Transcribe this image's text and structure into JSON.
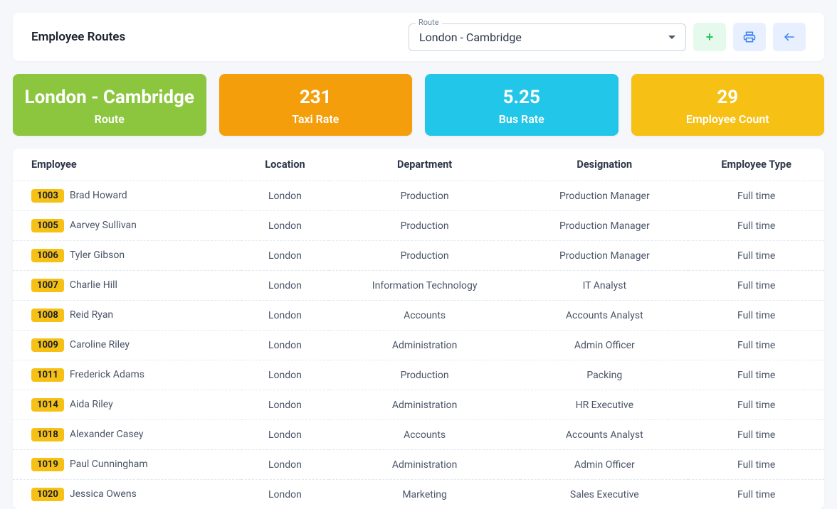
{
  "header": {
    "title": "Employee Routes",
    "route_select": {
      "label": "Route",
      "value": "London - Cambridge"
    }
  },
  "colors": {
    "route_card": "#8cc63f",
    "taxi_card": "#f59e0b",
    "bus_card": "#22c6e8",
    "count_card": "#f6c015",
    "badge": "#f6c015",
    "btn_add_bg": "#e6f9ed",
    "btn_add_fg": "#22c55e",
    "btn_blue_bg": "#e8f0ff",
    "btn_blue_fg": "#3b82f6"
  },
  "stats": [
    {
      "value": "London - Cambridge",
      "label": "Route",
      "colorKey": "route_card"
    },
    {
      "value": "231",
      "label": "Taxi Rate",
      "colorKey": "taxi_card"
    },
    {
      "value": "5.25",
      "label": "Bus Rate",
      "colorKey": "bus_card"
    },
    {
      "value": "29",
      "label": "Employee Count",
      "colorKey": "count_card"
    }
  ],
  "table": {
    "columns": [
      "Employee",
      "Location",
      "Department",
      "Designation",
      "Employee Type"
    ],
    "rows": [
      {
        "id": "1003",
        "name": "Brad Howard",
        "location": "London",
        "department": "Production",
        "designation": "Production Manager",
        "type": "Full time"
      },
      {
        "id": "1005",
        "name": "Aarvey Sullivan",
        "location": "London",
        "department": "Production",
        "designation": "Production Manager",
        "type": "Full time"
      },
      {
        "id": "1006",
        "name": "Tyler Gibson",
        "location": "London",
        "department": "Production",
        "designation": "Production Manager",
        "type": "Full time"
      },
      {
        "id": "1007",
        "name": "Charlie Hill",
        "location": "London",
        "department": "Information Technology",
        "designation": "IT Analyst",
        "type": "Full time"
      },
      {
        "id": "1008",
        "name": "Reid Ryan",
        "location": "London",
        "department": "Accounts",
        "designation": "Accounts Analyst",
        "type": "Full time"
      },
      {
        "id": "1009",
        "name": "Caroline Riley",
        "location": "London",
        "department": "Administration",
        "designation": "Admin Officer",
        "type": "Full time"
      },
      {
        "id": "1011",
        "name": "Frederick Adams",
        "location": "London",
        "department": "Production",
        "designation": "Packing",
        "type": "Full time"
      },
      {
        "id": "1014",
        "name": "Aida Riley",
        "location": "London",
        "department": "Administration",
        "designation": "HR Executive",
        "type": "Full time"
      },
      {
        "id": "1018",
        "name": "Alexander Casey",
        "location": "London",
        "department": "Accounts",
        "designation": "Accounts Analyst",
        "type": "Full time"
      },
      {
        "id": "1019",
        "name": "Paul Cunningham",
        "location": "London",
        "department": "Administration",
        "designation": "Admin Officer",
        "type": "Full time"
      },
      {
        "id": "1020",
        "name": "Jessica Owens",
        "location": "London",
        "department": "Marketing",
        "designation": "Sales Executive",
        "type": "Full time"
      }
    ]
  }
}
